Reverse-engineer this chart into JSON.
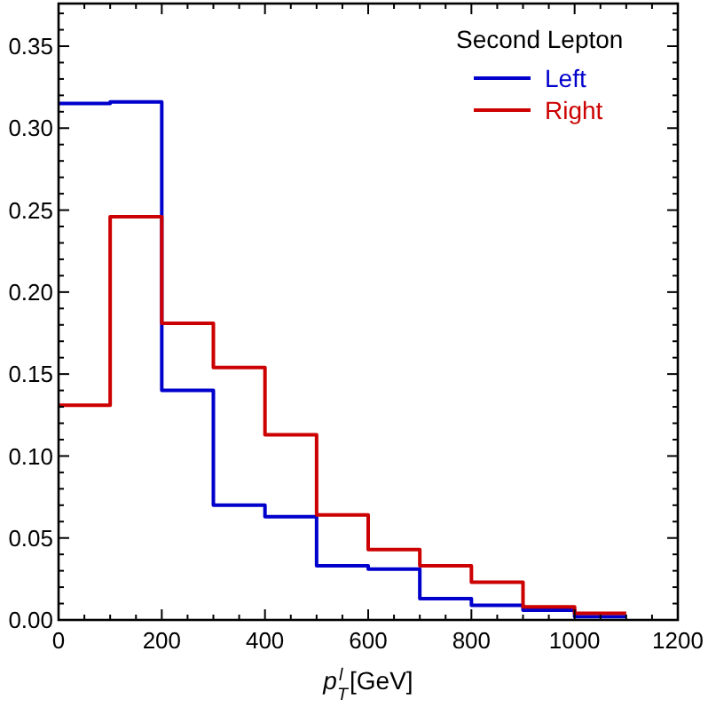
{
  "chart_data": {
    "type": "histogram",
    "xlabel": "p$_{T}$$^{l}$ [GeV]",
    "legend_title": "Second Lepton",
    "legend": "top right",
    "grid": false,
    "bins": [
      0,
      100,
      200,
      300,
      400,
      500,
      600,
      700,
      800,
      900,
      1000,
      1100
    ],
    "series": [
      {
        "name": "Left",
        "color": "#0000cc",
        "values": [
          0.315,
          0.316,
          0.14,
          0.07,
          0.063,
          0.033,
          0.031,
          0.013,
          0.009,
          0.006,
          0.002
        ]
      },
      {
        "name": "Right",
        "color": "#cc0000",
        "values": [
          0.131,
          0.246,
          0.181,
          0.154,
          0.113,
          0.064,
          0.043,
          0.033,
          0.023,
          0.008,
          0.004
        ]
      }
    ],
    "xlim": [
      0,
      1200
    ],
    "ylim": [
      0,
      0.376
    ],
    "xticks": [
      0,
      {
        "value": 50,
        "label": null
      },
      200,
      {
        "value": 100,
        "label": null
      },
      {
        "value": 150,
        "label": null
      },
      {
        "value": 250,
        "label": null
      },
      {
        "value": 300,
        "label": null
      },
      {
        "value": 350,
        "label": null
      },
      400,
      {
        "value": 450,
        "label": null
      },
      {
        "value": 500,
        "label": null
      },
      {
        "value": 550,
        "label": null
      },
      600,
      {
        "value": 650,
        "label": null
      },
      {
        "value": 700,
        "label": null
      },
      {
        "value": 750,
        "label": null
      },
      800,
      {
        "value": 850,
        "label": null
      },
      {
        "value": 900,
        "label": null
      },
      {
        "value": 950,
        "label": null
      },
      1000,
      {
        "value": 1050,
        "label": null
      },
      {
        "value": 1100,
        "label": null
      },
      {
        "value": 1150,
        "label": null
      },
      1200
    ],
    "yticks": [
      {
        "value": 0,
        "label": "0.00"
      },
      {
        "value": 0.05,
        "label": "0.05"
      },
      {
        "value": 0.1,
        "label": "0.10"
      },
      {
        "value": 0.15,
        "label": "0.15"
      },
      {
        "value": 0.2,
        "label": "0.20"
      },
      {
        "value": 0.25,
        "label": "0.25"
      },
      {
        "value": 0.3,
        "label": "0.30"
      },
      {
        "value": 0.35,
        "label": "0.35"
      },
      {
        "value": 0.01,
        "label": null
      },
      {
        "value": 0.02,
        "label": null
      },
      {
        "value": 0.03,
        "label": null
      },
      {
        "value": 0.04,
        "label": null
      },
      {
        "value": 0.06,
        "label": null
      },
      {
        "value": 0.07,
        "label": null
      },
      {
        "value": 0.08,
        "label": null
      },
      {
        "value": 0.09,
        "label": null
      },
      {
        "value": 0.11,
        "label": null
      },
      {
        "value": 0.12,
        "label": null
      },
      {
        "value": 0.13,
        "label": null
      },
      {
        "value": 0.14,
        "label": null
      },
      {
        "value": 0.16,
        "label": null
      },
      {
        "value": 0.17,
        "label": null
      },
      {
        "value": 0.18,
        "label": null
      },
      {
        "value": 0.19,
        "label": null
      },
      {
        "value": 0.21,
        "label": null
      },
      {
        "value": 0.22,
        "label": null
      },
      {
        "value": 0.23,
        "label": null
      },
      {
        "value": 0.24,
        "label": null
      },
      {
        "value": 0.26,
        "label": null
      },
      {
        "value": 0.27,
        "label": null
      },
      {
        "value": 0.28,
        "label": null
      },
      {
        "value": 0.29,
        "label": null
      },
      {
        "value": 0.31,
        "label": null
      },
      {
        "value": 0.32,
        "label": null
      },
      {
        "value": 0.33,
        "label": null
      },
      {
        "value": 0.34,
        "label": null
      },
      {
        "value": 0.36,
        "label": null
      },
      {
        "value": 0.37,
        "label": null
      }
    ]
  }
}
